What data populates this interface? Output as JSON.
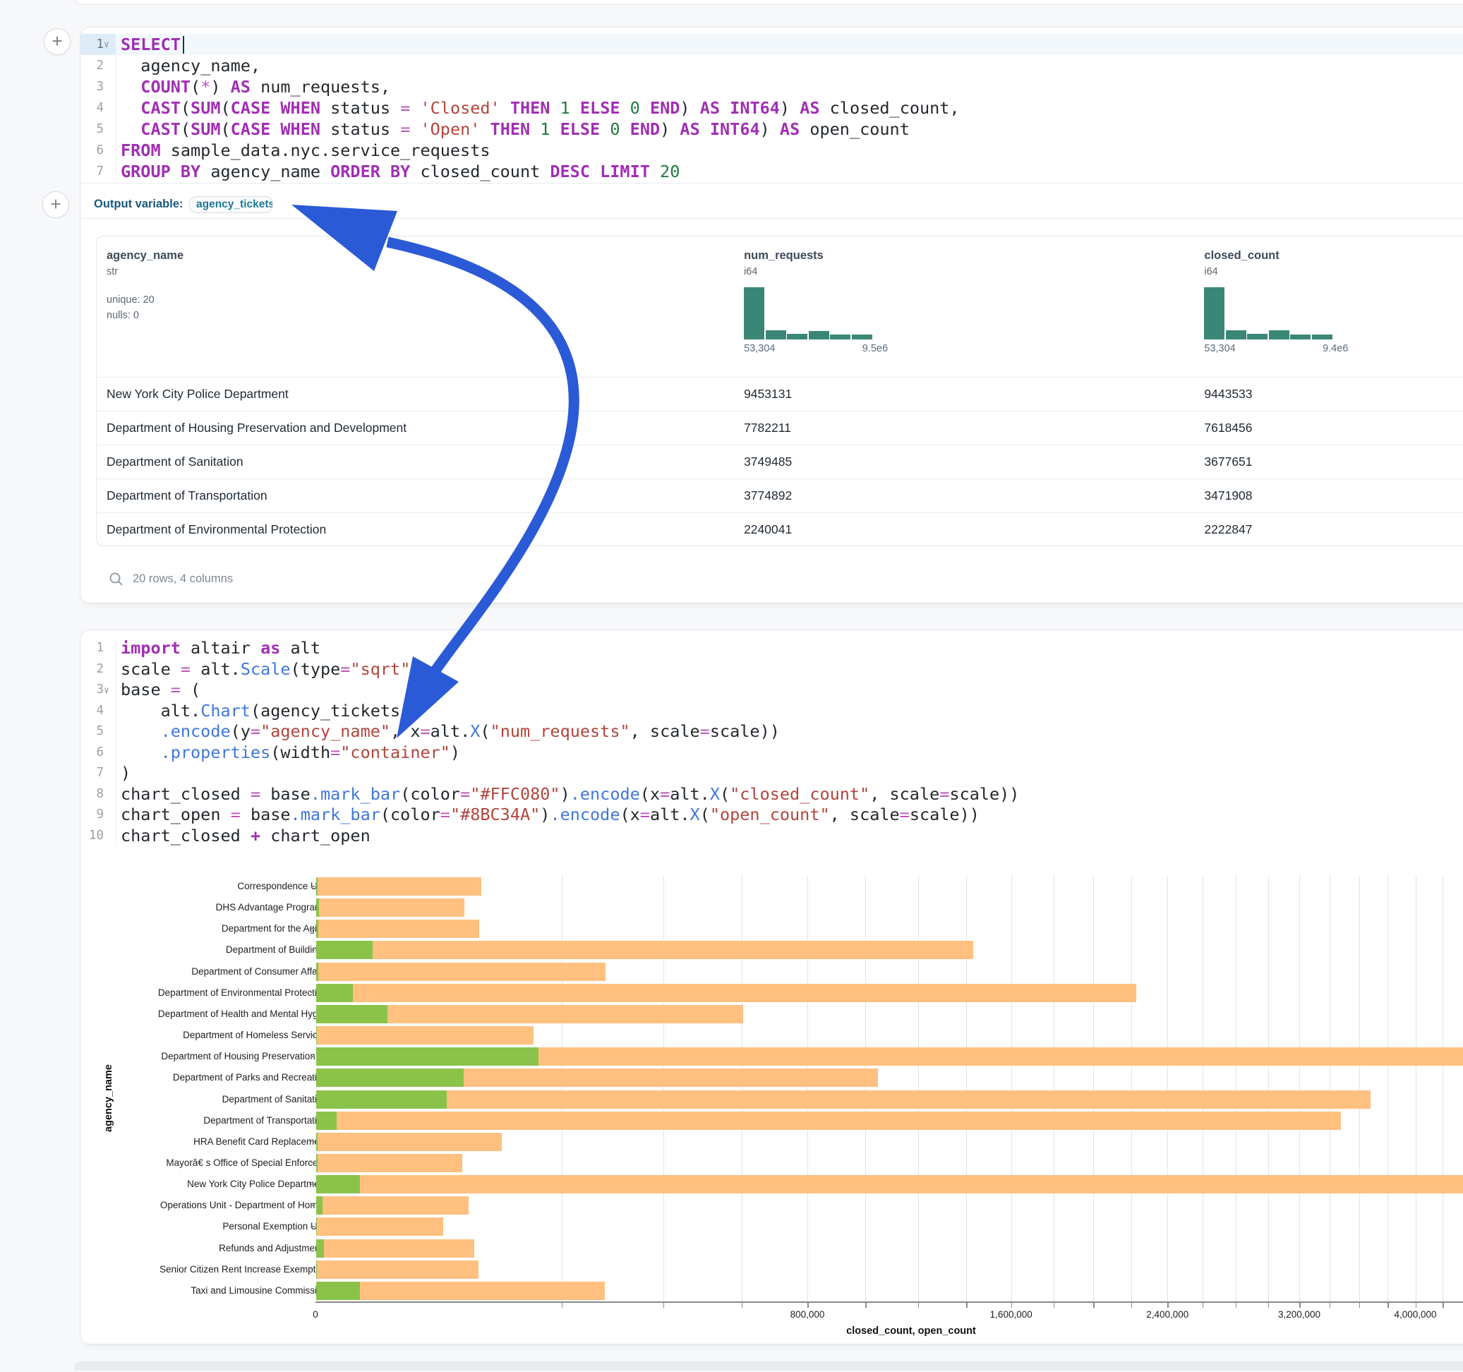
{
  "icons": {
    "plus": "+",
    "search": "magnifier"
  },
  "annotation": {
    "arrow_color": "#2B5AD6"
  },
  "cells": {
    "sql": {
      "output_variable": {
        "label": "Output variable:",
        "value": "agency_tickets"
      },
      "code_lines": [
        {
          "num": "1",
          "fold": true,
          "active": true,
          "cursor_at_end": true,
          "tokens": [
            [
              "k",
              "SELECT"
            ]
          ]
        },
        {
          "num": "2",
          "tokens": [
            [
              "t",
              "  agency_name,"
            ]
          ]
        },
        {
          "num": "3",
          "tokens": [
            [
              "t",
              "  "
            ],
            [
              "k",
              "COUNT"
            ],
            [
              "t",
              "("
            ],
            [
              "o",
              "*"
            ],
            [
              "t",
              ") "
            ],
            [
              "k",
              "AS"
            ],
            [
              "t",
              " num_requests,"
            ]
          ]
        },
        {
          "num": "4",
          "tokens": [
            [
              "t",
              "  "
            ],
            [
              "k",
              "CAST"
            ],
            [
              "t",
              "("
            ],
            [
              "k",
              "SUM"
            ],
            [
              "t",
              "("
            ],
            [
              "k",
              "CASE"
            ],
            [
              "t",
              " "
            ],
            [
              "k",
              "WHEN"
            ],
            [
              "t",
              " status "
            ],
            [
              "o",
              "="
            ],
            [
              "t",
              " "
            ],
            [
              "s",
              "'Closed'"
            ],
            [
              "t",
              " "
            ],
            [
              "k",
              "THEN"
            ],
            [
              "t",
              " "
            ],
            [
              "n",
              "1"
            ],
            [
              "t",
              " "
            ],
            [
              "k",
              "ELSE"
            ],
            [
              "t",
              " "
            ],
            [
              "n",
              "0"
            ],
            [
              "t",
              " "
            ],
            [
              "k",
              "END"
            ],
            [
              "t",
              ") "
            ],
            [
              "k",
              "AS"
            ],
            [
              "t",
              " "
            ],
            [
              "k",
              "INT64"
            ],
            [
              "t",
              ") "
            ],
            [
              "k",
              "AS"
            ],
            [
              "t",
              " closed_count,"
            ]
          ]
        },
        {
          "num": "5",
          "tokens": [
            [
              "t",
              "  "
            ],
            [
              "k",
              "CAST"
            ],
            [
              "t",
              "("
            ],
            [
              "k",
              "SUM"
            ],
            [
              "t",
              "("
            ],
            [
              "k",
              "CASE"
            ],
            [
              "t",
              " "
            ],
            [
              "k",
              "WHEN"
            ],
            [
              "t",
              " status "
            ],
            [
              "o",
              "="
            ],
            [
              "t",
              " "
            ],
            [
              "s",
              "'Open'"
            ],
            [
              "t",
              " "
            ],
            [
              "k",
              "THEN"
            ],
            [
              "t",
              " "
            ],
            [
              "n",
              "1"
            ],
            [
              "t",
              " "
            ],
            [
              "k",
              "ELSE"
            ],
            [
              "t",
              " "
            ],
            [
              "n",
              "0"
            ],
            [
              "t",
              " "
            ],
            [
              "k",
              "END"
            ],
            [
              "t",
              ") "
            ],
            [
              "k",
              "AS"
            ],
            [
              "t",
              " "
            ],
            [
              "k",
              "INT64"
            ],
            [
              "t",
              ") "
            ],
            [
              "k",
              "AS"
            ],
            [
              "t",
              " open_count"
            ]
          ]
        },
        {
          "num": "6",
          "tokens": [
            [
              "k",
              "FROM"
            ],
            [
              "t",
              " sample_data.nyc.service_requests"
            ]
          ]
        },
        {
          "num": "7",
          "tokens": [
            [
              "k",
              "GROUP BY"
            ],
            [
              "t",
              " agency_name "
            ],
            [
              "k",
              "ORDER BY"
            ],
            [
              "t",
              " closed_count "
            ],
            [
              "k",
              "DESC"
            ],
            [
              "t",
              " "
            ],
            [
              "k",
              "LIMIT"
            ],
            [
              "t",
              " "
            ],
            [
              "n",
              "20"
            ]
          ]
        }
      ],
      "table": {
        "columns": [
          {
            "name": "agency_name",
            "type": "str",
            "stats": [
              "unique: 20",
              "nulls: 0"
            ]
          },
          {
            "name": "num_requests",
            "type": "i64",
            "hist": [
              74,
              13,
              8,
              12,
              7,
              7
            ],
            "min_label": "53,304",
            "max_label": "9.5e6"
          },
          {
            "name": "closed_count",
            "type": "i64",
            "hist": [
              74,
              13,
              8,
              13,
              7,
              7
            ],
            "min_label": "53,304",
            "max_label": "9.4e6"
          }
        ],
        "hist_color": "#3B8776",
        "rows": [
          [
            "New York City Police Department",
            "9453131",
            "9443533"
          ],
          [
            "Department of Housing Preservation and Development",
            "7782211",
            "7618456"
          ],
          [
            "Department of Sanitation",
            "3749485",
            "3677651"
          ],
          [
            "Department of Transportation",
            "3774892",
            "3471908"
          ],
          [
            "Department of Environmental Protection",
            "2240041",
            "2222847"
          ]
        ],
        "footer": "20 rows, 4 columns"
      }
    },
    "python": {
      "code_lines": [
        {
          "num": "1",
          "tokens": [
            [
              "k",
              "import"
            ],
            [
              "t",
              " altair "
            ],
            [
              "k",
              "as"
            ],
            [
              "t",
              " alt"
            ]
          ]
        },
        {
          "num": "2",
          "tokens": [
            [
              "t",
              "scale "
            ],
            [
              "o",
              "="
            ],
            [
              "t",
              " alt."
            ],
            [
              "f",
              "Scale"
            ],
            [
              "t",
              "(type"
            ],
            [
              "o",
              "="
            ],
            [
              "s",
              "\"sqrt\""
            ],
            [
              "t",
              ")"
            ]
          ]
        },
        {
          "num": "3",
          "fold": true,
          "tokens": [
            [
              "t",
              "base "
            ],
            [
              "o",
              "="
            ],
            [
              "t",
              " ("
            ]
          ]
        },
        {
          "num": "4",
          "tokens": [
            [
              "t",
              "    alt."
            ],
            [
              "f",
              "Chart"
            ],
            [
              "t",
              "(agency_tickets)"
            ]
          ]
        },
        {
          "num": "5",
          "tokens": [
            [
              "t",
              "    "
            ],
            [
              "f",
              ".encode"
            ],
            [
              "t",
              "(y"
            ],
            [
              "o",
              "="
            ],
            [
              "s",
              "\"agency_name\""
            ],
            [
              "t",
              ", x"
            ],
            [
              "o",
              "="
            ],
            [
              "t",
              "alt."
            ],
            [
              "f",
              "X"
            ],
            [
              "t",
              "("
            ],
            [
              "s",
              "\"num_requests\""
            ],
            [
              "t",
              ", scale"
            ],
            [
              "o",
              "="
            ],
            [
              "t",
              "scale))"
            ]
          ]
        },
        {
          "num": "6",
          "tokens": [
            [
              "t",
              "    "
            ],
            [
              "f",
              ".properties"
            ],
            [
              "t",
              "(width"
            ],
            [
              "o",
              "="
            ],
            [
              "s",
              "\"container\""
            ],
            [
              "t",
              ")"
            ]
          ]
        },
        {
          "num": "7",
          "tokens": [
            [
              "t",
              ")"
            ]
          ]
        },
        {
          "num": "8",
          "tokens": [
            [
              "t",
              "chart_closed "
            ],
            [
              "o",
              "="
            ],
            [
              "t",
              " base"
            ],
            [
              "f",
              ".mark_bar"
            ],
            [
              "t",
              "(color"
            ],
            [
              "o",
              "="
            ],
            [
              "s",
              "\"#FFC080\""
            ],
            [
              "t",
              ")"
            ],
            [
              "f",
              ".encode"
            ],
            [
              "t",
              "(x"
            ],
            [
              "o",
              "="
            ],
            [
              "t",
              "alt."
            ],
            [
              "f",
              "X"
            ],
            [
              "t",
              "("
            ],
            [
              "s",
              "\"closed_count\""
            ],
            [
              "t",
              ", scale"
            ],
            [
              "o",
              "="
            ],
            [
              "t",
              "scale))"
            ]
          ]
        },
        {
          "num": "9",
          "tokens": [
            [
              "t",
              "chart_open "
            ],
            [
              "o",
              "="
            ],
            [
              "t",
              " base"
            ],
            [
              "f",
              ".mark_bar"
            ],
            [
              "t",
              "(color"
            ],
            [
              "o",
              "="
            ],
            [
              "s",
              "\"#8BC34A\""
            ],
            [
              "t",
              ")"
            ],
            [
              "f",
              ".encode"
            ],
            [
              "t",
              "(x"
            ],
            [
              "o",
              "="
            ],
            [
              "t",
              "alt."
            ],
            [
              "f",
              "X"
            ],
            [
              "t",
              "("
            ],
            [
              "s",
              "\"open_count\""
            ],
            [
              "t",
              ", scale"
            ],
            [
              "o",
              "="
            ],
            [
              "t",
              "scale))"
            ]
          ]
        },
        {
          "num": "10",
          "tokens": [
            [
              "t",
              "chart_closed "
            ],
            [
              "k",
              "+"
            ],
            [
              "t",
              " chart_open"
            ]
          ]
        }
      ]
    }
  },
  "chart_data": {
    "type": "bar",
    "orientation": "horizontal",
    "x_scale_type": "sqrt",
    "xlabel": "closed_count, open_count",
    "ylabel": "agency_name",
    "grid": true,
    "gridline_step": 200000,
    "x_ticks": [
      {
        "value": 0,
        "label": "0"
      },
      {
        "value": 800000,
        "label": "800,000"
      },
      {
        "value": 1600000,
        "label": "1,600,000"
      },
      {
        "value": 2400000,
        "label": "2,400,000"
      },
      {
        "value": 3200000,
        "label": "3,200,000"
      },
      {
        "value": 4000000,
        "label": "4,000,000"
      }
    ],
    "categories": [
      "Correspondence Unit",
      "DHS Advantage Programs",
      "Department for the Aging",
      "Department of Buildings",
      "Department of Consumer Affairs",
      "Department of Environmental Protection",
      "Department of Health and Mental Hyg…",
      "Department of Homeless Services",
      "Department of Housing Preservation …",
      "Department of Parks and Recreation",
      "Department of Sanitation",
      "Department of Transportation",
      "HRA Benefit Card Replacement",
      "Mayorâ€ s Office of Special Enforce…",
      "New York City Police Department",
      "Operations Unit - Department of Hom…",
      "Personal Exemption Unit",
      "Refunds and Adjustments",
      "Senior Citizen Rent Increase Exempti…",
      "Taxi and Limousine Commission"
    ],
    "series": [
      {
        "name": "closed_count",
        "color": "#FFC080",
        "values": [
          90000,
          72600,
          88000,
          1428000,
          277000,
          2222847,
          603000,
          156300,
          7618456,
          1044000,
          3677651,
          3471908,
          114000,
          70600,
          9443533,
          76900,
          53304,
          82700,
          87200,
          275700
        ]
      },
      {
        "name": "open_count",
        "color": "#8BC34A",
        "values": [
          10,
          26,
          15,
          10500,
          15,
          4500,
          16800,
          2,
          163500,
          72000,
          56400,
          1390,
          5,
          5,
          6300,
          130,
          3,
          200,
          3,
          6300
        ]
      }
    ]
  }
}
